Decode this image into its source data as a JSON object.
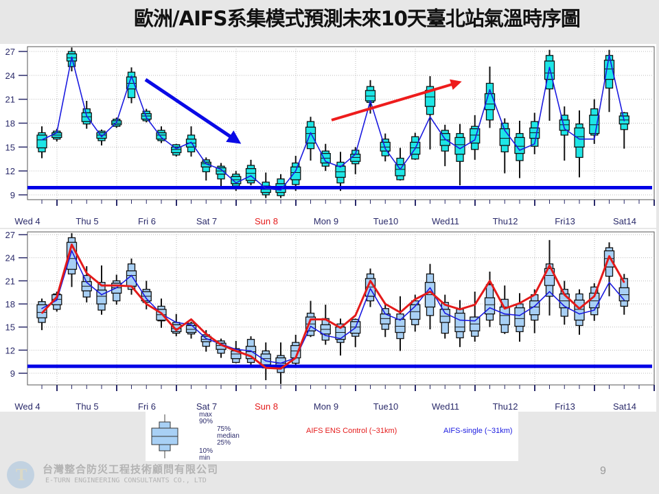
{
  "title": "歐洲/AIFS系集模式預測未來10天臺北站氣溫時序圖",
  "page_number": "9",
  "company": {
    "name_cn": "台灣整合防災工程技術顧問有限公司",
    "name_en": "E-TURN ENGINEERING CONSULTANTS CO., LTD"
  },
  "legend": {
    "max": "max",
    "p90": "90%",
    "p75": "75%",
    "median": "median",
    "p25": "25%",
    "p10": "10%",
    "min": "min",
    "control": "AIFS ENS Control (~31km)",
    "single": "AIFS-single (~31km)"
  },
  "colors": {
    "threshold": "#0000e6",
    "single": "#1a1ae0",
    "control": "#e41a1a",
    "box_top": "#1ee6e6",
    "box_bottom": "#a8d0f5",
    "sunday_label": "#e41a1a",
    "axis": "#2a2a6a"
  },
  "chart_data": [
    {
      "type": "box",
      "stats_order": [
        "min",
        "10%",
        "25%",
        "median",
        "75%",
        "90%",
        "max"
      ],
      "day_labels": [
        "Wed 4",
        "Thu 5",
        "Fri 6",
        "Sat 7",
        "Sun 8",
        "Mon 9",
        "Tue10",
        "Wed11",
        "Thu12",
        "Fri13",
        "Sat14"
      ],
      "y_ticks": [
        "9",
        "12",
        "15",
        "18",
        "21",
        "24",
        "27"
      ],
      "ylim": [
        8,
        27.5
      ],
      "grid": true,
      "threshold": 9.9,
      "x": [
        "4/18",
        "5/00",
        "5/06",
        "5/12",
        "5/18",
        "6/00",
        "6/06",
        "6/12",
        "6/18",
        "7/00",
        "7/06",
        "7/12",
        "7/18",
        "8/00",
        "8/06",
        "8/12",
        "8/18",
        "9/00",
        "9/06",
        "9/12",
        "9/18",
        "10/00",
        "10/06",
        "10/12",
        "10/18",
        "11/00",
        "11/06",
        "11/12",
        "11/18",
        "12/00",
        "12/06",
        "12/12",
        "12/18",
        "13/00",
        "13/06",
        "13/12",
        "13/18",
        "14/00",
        "14/06",
        "14/12"
      ],
      "boxes": [
        [
          13.6,
          14.4,
          14.9,
          15.9,
          16.5,
          16.8,
          17.6
        ],
        [
          15.7,
          16.0,
          16.2,
          16.5,
          16.8,
          17.0,
          17.3
        ],
        [
          24.5,
          25.1,
          25.8,
          26.2,
          26.7,
          27.0,
          27.5
        ],
        [
          17.3,
          17.9,
          18.2,
          18.8,
          19.3,
          19.8,
          20.8
        ],
        [
          15.2,
          15.8,
          16.1,
          16.5,
          16.8,
          17.0,
          17.2
        ],
        [
          17.4,
          17.6,
          17.8,
          18.0,
          18.3,
          18.5,
          18.7
        ],
        [
          20.5,
          21.2,
          22.3,
          23.0,
          23.8,
          24.4,
          25.0
        ],
        [
          18.1,
          18.3,
          18.5,
          18.9,
          19.2,
          19.5,
          19.8
        ],
        [
          15.5,
          15.8,
          16.0,
          16.5,
          16.8,
          17.1,
          17.6
        ],
        [
          13.8,
          14.0,
          14.3,
          14.7,
          15.0,
          15.3,
          15.4
        ],
        [
          13.8,
          14.4,
          15.0,
          15.5,
          16.0,
          16.5,
          17.6
        ],
        [
          10.8,
          11.9,
          12.5,
          12.9,
          13.1,
          13.4,
          13.7
        ],
        [
          10.1,
          11.0,
          11.6,
          12.0,
          12.4,
          12.6,
          13.0
        ],
        [
          9.5,
          10.1,
          10.4,
          10.9,
          11.3,
          11.6,
          12.0
        ],
        [
          10.2,
          10.5,
          10.8,
          11.7,
          12.3,
          12.7,
          13.4
        ],
        [
          8.6,
          9.0,
          9.3,
          9.7,
          10.1,
          10.6,
          11.8
        ],
        [
          8.6,
          8.9,
          9.3,
          9.8,
          10.4,
          11.0,
          11.6
        ],
        [
          9.5,
          10.3,
          10.9,
          11.8,
          12.5,
          13.0,
          13.9
        ],
        [
          13.3,
          14.8,
          15.5,
          16.7,
          17.5,
          18.2,
          18.8
        ],
        [
          12.0,
          12.6,
          13.0,
          13.6,
          14.2,
          14.5,
          15.4
        ],
        [
          9.5,
          10.5,
          11.2,
          11.9,
          12.6,
          13.1,
          14.4
        ],
        [
          11.6,
          12.9,
          13.2,
          13.7,
          14.1,
          14.6,
          15.0
        ],
        [
          19.2,
          20.6,
          20.8,
          21.4,
          22.1,
          22.6,
          23.4
        ],
        [
          13.2,
          13.9,
          14.5,
          15.0,
          15.6,
          16.0,
          16.7
        ],
        [
          10.8,
          10.9,
          11.4,
          12.2,
          12.8,
          13.6,
          14.9
        ],
        [
          13.4,
          13.5,
          14.1,
          14.9,
          15.6,
          16.3,
          16.8
        ],
        [
          14.7,
          19.1,
          20.1,
          21.3,
          22.1,
          22.6,
          23.9
        ],
        [
          12.6,
          14.5,
          15.2,
          15.9,
          16.7,
          17.1,
          17.8
        ],
        [
          10.2,
          13.2,
          14.1,
          15.3,
          16.2,
          16.7,
          17.9
        ],
        [
          13.4,
          14.7,
          15.5,
          16.5,
          17.3,
          17.6,
          19.0
        ],
        [
          17.4,
          18.4,
          19.7,
          20.4,
          21.7,
          23.0,
          25.1
        ],
        [
          11.7,
          14.4,
          15.2,
          16.1,
          17.3,
          18.0,
          18.6
        ],
        [
          11.1,
          13.3,
          14.2,
          15.1,
          16.2,
          16.7,
          18.3
        ],
        [
          14.1,
          15.1,
          16.1,
          16.8,
          17.4,
          18.2,
          19.3
        ],
        [
          18.3,
          22.3,
          23.5,
          24.3,
          25.8,
          26.5,
          27.2
        ],
        [
          13.3,
          16.5,
          17.1,
          17.8,
          18.4,
          19.0,
          20.1
        ],
        [
          11.2,
          13.7,
          15.0,
          16.3,
          17.4,
          17.9,
          19.6
        ],
        [
          15.4,
          16.5,
          16.7,
          17.8,
          19.0,
          19.8,
          21.0
        ],
        [
          19.4,
          22.4,
          23.5,
          24.8,
          25.9,
          26.5,
          27.2
        ],
        [
          14.8,
          17.2,
          17.9,
          18.4,
          18.9,
          19.3,
          19.4
        ]
      ],
      "lines": [
        {
          "color": "#1a1ae0",
          "values": [
            15.9,
            16.8,
            26.3,
            18.9,
            16.3,
            18.1,
            23.9,
            18.7,
            16.2,
            14.8,
            15.6,
            12.9,
            12.2,
            10.5,
            11.4,
            9.8,
            9.6,
            12.0,
            16.8,
            13.2,
            12.5,
            14.1,
            20.8,
            14.8,
            12.2,
            14.8,
            18.8,
            16.0,
            14.8,
            15.9,
            22.2,
            17.1,
            14.6,
            15.4,
            25.0,
            17.3,
            16.0,
            16.0,
            26.5,
            18.3
          ]
        }
      ],
      "annotations": [
        {
          "type": "arrow",
          "color": "#0a0ae6",
          "direction": "down"
        },
        {
          "type": "arrow",
          "color": "#ee1c1c",
          "direction": "up"
        }
      ]
    },
    {
      "type": "box",
      "stats_order": [
        "min",
        "10%",
        "25%",
        "median",
        "75%",
        "90%",
        "max"
      ],
      "day_labels": [
        "Wed 4",
        "Thu 5",
        "Fri 6",
        "Sat 7",
        "Sun 8",
        "Mon 9",
        "Tue10",
        "Wed11",
        "Thu12",
        "Fri13",
        "Sat14"
      ],
      "y_ticks": [
        "9",
        "12",
        "15",
        "18",
        "21",
        "24",
        "27"
      ],
      "ylim": [
        8,
        27.5
      ],
      "grid": true,
      "threshold": 9.9,
      "x": [
        "4/18",
        "5/00",
        "5/06",
        "5/12",
        "5/18",
        "6/00",
        "6/06",
        "6/12",
        "6/18",
        "7/00",
        "7/06",
        "7/12",
        "7/18",
        "8/00",
        "8/06",
        "8/12",
        "8/18",
        "9/00",
        "9/06",
        "9/12",
        "9/18",
        "10/00",
        "10/06",
        "10/12",
        "10/18",
        "11/00",
        "11/06",
        "11/12",
        "11/18",
        "12/00",
        "12/06",
        "12/12",
        "12/18",
        "13/00",
        "13/06",
        "13/12",
        "13/18",
        "14/00",
        "14/06",
        "14/12"
      ],
      "boxes": [
        [
          14.6,
          15.6,
          16.2,
          16.9,
          17.9,
          18.3,
          18.7
        ],
        [
          17.0,
          17.3,
          17.9,
          18.6,
          19.2,
          19.3,
          19.6
        ],
        [
          20.2,
          21.9,
          22.5,
          23.9,
          26.0,
          26.6,
          27.2
        ],
        [
          18.2,
          18.9,
          19.7,
          20.3,
          20.9,
          21.7,
          22.9
        ],
        [
          16.6,
          17.2,
          18.0,
          19.0,
          19.8,
          20.8,
          23.0
        ],
        [
          17.9,
          18.4,
          19.4,
          20.1,
          20.7,
          21.0,
          21.8
        ],
        [
          19.2,
          19.9,
          20.3,
          21.7,
          22.3,
          23.2,
          23.9
        ],
        [
          17.3,
          18.2,
          18.4,
          19.0,
          19.6,
          19.9,
          21.0
        ],
        [
          14.9,
          15.8,
          15.9,
          16.6,
          17.3,
          17.7,
          18.7
        ],
        [
          13.8,
          14.2,
          14.4,
          14.8,
          15.3,
          15.6,
          16.7
        ],
        [
          13.5,
          14.1,
          14.3,
          14.7,
          15.2,
          15.5,
          15.7
        ],
        [
          11.8,
          12.5,
          13.1,
          13.4,
          13.8,
          14.0,
          14.6
        ],
        [
          11.0,
          11.6,
          12.1,
          12.6,
          12.9,
          13.2,
          13.5
        ],
        [
          10.3,
          10.4,
          10.9,
          11.5,
          11.9,
          12.2,
          13.2
        ],
        [
          10.1,
          10.4,
          10.9,
          11.8,
          12.5,
          13.4,
          13.8
        ],
        [
          8.1,
          9.7,
          10.1,
          10.9,
          11.5,
          11.9,
          13.0
        ],
        [
          7.6,
          9.1,
          9.7,
          10.3,
          11.0,
          11.3,
          13.0
        ],
        [
          10.1,
          10.3,
          11.0,
          11.9,
          12.6,
          13.0,
          14.0
        ],
        [
          13.7,
          13.9,
          14.5,
          15.4,
          16.3,
          16.8,
          18.4
        ],
        [
          12.7,
          13.3,
          14.1,
          14.7,
          15.3,
          16.1,
          17.9
        ],
        [
          11.3,
          13.0,
          13.4,
          14.3,
          15.0,
          15.4,
          16.1
        ],
        [
          12.4,
          13.8,
          14.2,
          15.0,
          15.7,
          16.0,
          16.1
        ],
        [
          17.6,
          18.4,
          19.0,
          20.2,
          21.3,
          21.9,
          22.6
        ],
        [
          13.7,
          14.7,
          15.4,
          16.1,
          16.7,
          17.4,
          18.0
        ],
        [
          11.9,
          13.5,
          14.3,
          15.1,
          16.0,
          16.7,
          19.0
        ],
        [
          14.4,
          15.3,
          16.0,
          17.0,
          17.9,
          18.4,
          19.2
        ],
        [
          14.7,
          16.5,
          17.6,
          19.2,
          20.8,
          21.9,
          23.2
        ],
        [
          13.5,
          14.2,
          15.6,
          16.4,
          17.3,
          18.2,
          19.2
        ],
        [
          12.4,
          13.6,
          14.4,
          15.0,
          16.8,
          17.3,
          18.5
        ],
        [
          13.1,
          13.8,
          14.5,
          15.4,
          16.3,
          16.3,
          19.6
        ],
        [
          15.0,
          15.9,
          16.7,
          17.9,
          18.8,
          20.5,
          22.2
        ],
        [
          14.1,
          14.3,
          15.3,
          16.5,
          17.6,
          18.6,
          20.4
        ],
        [
          13.1,
          14.4,
          15.1,
          16.1,
          17.5,
          18.0,
          19.4
        ],
        [
          14.2,
          15.9,
          16.6,
          17.6,
          18.4,
          19.2,
          19.9
        ],
        [
          16.5,
          19.0,
          20.4,
          21.7,
          22.6,
          23.2,
          26.3
        ],
        [
          15.3,
          16.4,
          17.5,
          18.4,
          19.3,
          19.9,
          21.0
        ],
        [
          14.0,
          15.2,
          15.9,
          17.3,
          18.5,
          19.3,
          19.9
        ],
        [
          15.8,
          16.6,
          17.5,
          18.4,
          19.4,
          20.2,
          20.7
        ],
        [
          19.0,
          21.6,
          22.8,
          23.9,
          24.9,
          25.3,
          26.0
        ],
        [
          16.6,
          17.7,
          18.4,
          19.2,
          20.1,
          21.3,
          21.9
        ]
      ],
      "lines": [
        {
          "name": "AIFS-single (~31km)",
          "color": "#1a1ae0",
          "values": [
            17.4,
            18.5,
            24.9,
            20.8,
            19.2,
            20.1,
            21.7,
            18.7,
            16.7,
            15.6,
            15.3,
            13.5,
            12.8,
            12.1,
            11.9,
            10.6,
            10.3,
            11.0,
            15.1,
            13.9,
            13.5,
            14.9,
            20.0,
            16.7,
            15.9,
            17.7,
            20.1,
            16.8,
            15.9,
            15.8,
            17.5,
            16.7,
            16.5,
            17.7,
            19.6,
            17.7,
            16.7,
            17.2,
            20.8,
            18.5
          ]
        },
        {
          "name": "AIFS ENS Control (~31km)",
          "color": "#e41a1a",
          "values": [
            16.8,
            18.9,
            25.7,
            22.0,
            20.4,
            20.4,
            20.3,
            18.0,
            16.8,
            14.6,
            16.0,
            14.1,
            12.7,
            11.9,
            11.2,
            9.7,
            9.6,
            11.0,
            16.0,
            16.0,
            14.9,
            16.5,
            21.0,
            18.0,
            16.9,
            18.6,
            19.6,
            17.9,
            17.3,
            17.9,
            21.0,
            17.4,
            18.1,
            19.2,
            23.0,
            19.2,
            17.4,
            19.0,
            24.2,
            20.8
          ]
        }
      ]
    }
  ]
}
